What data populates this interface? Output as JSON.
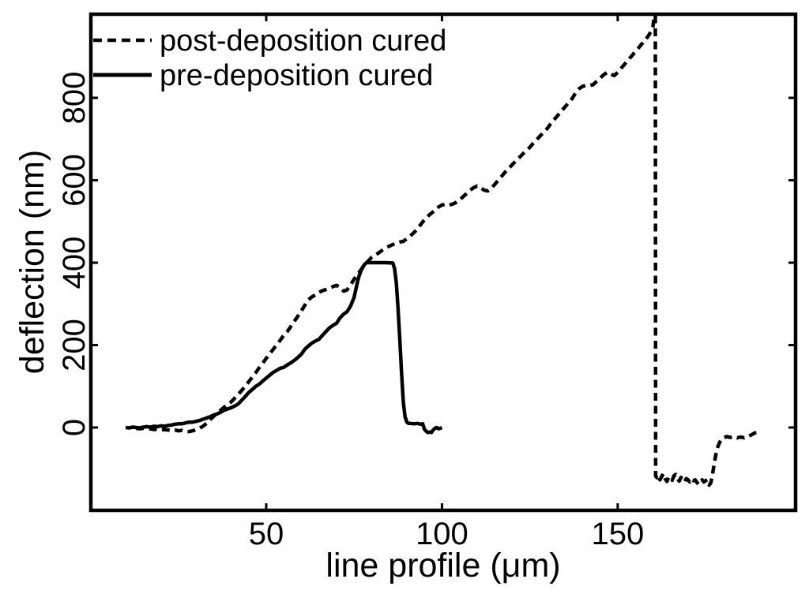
{
  "colors": {
    "background": "#ffffff",
    "foreground": "#000000"
  },
  "chart_data": {
    "type": "line",
    "title": "",
    "xlabel": "line profile (μm)",
    "ylabel": "deflection (nm)",
    "xlim": [
      0.1,
      200.6
    ],
    "ylim": [
      -201,
      1003
    ],
    "x_ticks": [
      50,
      100,
      150
    ],
    "y_ticks": [
      0,
      200,
      400,
      600,
      800
    ],
    "grid": false,
    "legend_position": "top-left",
    "series": [
      {
        "name": "post-deposition cured",
        "line_style": "dashed",
        "color": "#000000",
        "points": [
          [
            13,
            -2
          ],
          [
            14,
            -3
          ],
          [
            15,
            -2
          ],
          [
            16,
            -4
          ],
          [
            17,
            -3
          ],
          [
            18,
            -5
          ],
          [
            19,
            -4
          ],
          [
            20,
            -6
          ],
          [
            21,
            -5
          ],
          [
            22,
            -6
          ],
          [
            23,
            -7
          ],
          [
            24,
            -6
          ],
          [
            25,
            -8
          ],
          [
            26,
            -7
          ],
          [
            27,
            -9
          ],
          [
            28,
            -10
          ],
          [
            29,
            -8
          ],
          [
            30,
            -6
          ],
          [
            31,
            -2
          ],
          [
            32,
            3
          ],
          [
            33,
            10
          ],
          [
            34,
            19
          ],
          [
            35,
            27
          ],
          [
            36,
            35
          ],
          [
            37,
            42
          ],
          [
            38,
            49
          ],
          [
            39,
            56
          ],
          [
            40,
            62
          ],
          [
            41,
            71
          ],
          [
            42,
            80
          ],
          [
            43,
            90
          ],
          [
            44,
            100
          ],
          [
            45,
            111
          ],
          [
            46,
            122
          ],
          [
            47,
            133
          ],
          [
            48,
            145
          ],
          [
            49,
            156
          ],
          [
            50,
            168
          ],
          [
            51,
            179
          ],
          [
            52,
            190
          ],
          [
            53,
            201
          ],
          [
            54,
            212
          ],
          [
            55,
            224
          ],
          [
            56,
            233
          ],
          [
            57,
            245
          ],
          [
            58,
            258
          ],
          [
            59,
            270
          ],
          [
            60,
            283
          ],
          [
            61,
            297
          ],
          [
            62,
            310
          ],
          [
            63,
            317
          ],
          [
            64,
            322
          ],
          [
            65,
            328
          ],
          [
            66,
            332
          ],
          [
            67,
            335
          ],
          [
            68,
            338
          ],
          [
            69,
            342
          ],
          [
            70,
            345
          ],
          [
            71,
            341
          ],
          [
            72,
            331
          ],
          [
            73,
            334
          ],
          [
            74,
            346
          ],
          [
            75,
            360
          ],
          [
            76,
            372
          ],
          [
            77,
            383
          ],
          [
            78,
            394
          ],
          [
            79,
            404
          ],
          [
            80,
            413
          ],
          [
            81,
            418
          ],
          [
            82,
            424
          ],
          [
            83,
            430
          ],
          [
            84,
            436
          ],
          [
            85,
            440
          ],
          [
            86,
            444
          ],
          [
            87,
            447
          ],
          [
            88,
            450
          ],
          [
            89,
            452
          ],
          [
            90,
            458
          ],
          [
            91,
            465
          ],
          [
            92,
            473
          ],
          [
            93,
            482
          ],
          [
            94,
            493
          ],
          [
            95,
            504
          ],
          [
            96,
            513
          ],
          [
            97,
            520
          ],
          [
            98,
            527
          ],
          [
            99,
            535
          ],
          [
            100,
            540
          ],
          [
            101,
            542
          ],
          [
            102,
            540
          ],
          [
            103,
            542
          ],
          [
            104,
            546
          ],
          [
            105,
            552
          ],
          [
            106,
            560
          ],
          [
            107,
            568
          ],
          [
            108,
            576
          ],
          [
            109,
            582
          ],
          [
            110,
            586
          ],
          [
            111,
            582
          ],
          [
            112,
            576
          ],
          [
            113,
            574
          ],
          [
            114,
            580
          ],
          [
            115,
            590
          ],
          [
            116,
            600
          ],
          [
            117,
            610
          ],
          [
            118,
            620
          ],
          [
            119,
            629
          ],
          [
            120,
            638
          ],
          [
            121,
            647
          ],
          [
            122,
            655
          ],
          [
            123,
            664
          ],
          [
            124,
            672
          ],
          [
            125,
            680
          ],
          [
            126,
            690
          ],
          [
            127,
            699
          ],
          [
            128,
            708
          ],
          [
            129,
            717
          ],
          [
            130,
            726
          ],
          [
            131,
            738
          ],
          [
            132,
            748
          ],
          [
            133,
            758
          ],
          [
            134,
            768
          ],
          [
            135,
            778
          ],
          [
            136,
            788
          ],
          [
            137,
            798
          ],
          [
            138,
            812
          ],
          [
            139,
            822
          ],
          [
            140,
            828
          ],
          [
            141,
            830
          ],
          [
            142,
            830
          ],
          [
            143,
            832
          ],
          [
            144,
            840
          ],
          [
            145,
            848
          ],
          [
            146,
            856
          ],
          [
            147,
            862
          ],
          [
            148,
            858
          ],
          [
            149,
            854
          ],
          [
            150,
            862
          ],
          [
            151,
            872
          ],
          [
            152,
            882
          ],
          [
            153,
            892
          ],
          [
            154,
            902
          ],
          [
            155,
            912
          ],
          [
            156,
            922
          ],
          [
            157,
            932
          ],
          [
            158,
            942
          ],
          [
            159,
            954
          ],
          [
            160,
            972
          ],
          [
            160.4,
            1000
          ],
          [
            160.7,
            1000
          ],
          [
            160.8,
            -118
          ],
          [
            161.2,
            -122
          ],
          [
            161.6,
            -117
          ],
          [
            162,
            -127
          ],
          [
            162.5,
            -119
          ],
          [
            163,
            -112
          ],
          [
            163.5,
            -124
          ],
          [
            164,
            -131
          ],
          [
            164.5,
            -120
          ],
          [
            165,
            -122
          ],
          [
            165.5,
            -128
          ],
          [
            166,
            -117
          ],
          [
            166.5,
            -114
          ],
          [
            167,
            -124
          ],
          [
            167.5,
            -130
          ],
          [
            168,
            -121
          ],
          [
            168.5,
            -127
          ],
          [
            169,
            -132
          ],
          [
            169.5,
            -124
          ],
          [
            170,
            -127
          ],
          [
            170.5,
            -132
          ],
          [
            171,
            -125
          ],
          [
            171.5,
            -129
          ],
          [
            172,
            -127
          ],
          [
            172.5,
            -133
          ],
          [
            173,
            -138
          ],
          [
            173.5,
            -131
          ],
          [
            174,
            -127
          ],
          [
            174.5,
            -132
          ],
          [
            175,
            -129
          ],
          [
            175.5,
            -127
          ],
          [
            176,
            -140
          ],
          [
            176.5,
            -134
          ],
          [
            177,
            -112
          ],
          [
            177.5,
            -86
          ],
          [
            178,
            -62
          ],
          [
            178.5,
            -46
          ],
          [
            179,
            -36
          ],
          [
            179.5,
            -29
          ],
          [
            180,
            -25
          ],
          [
            181,
            -22
          ],
          [
            182,
            -24
          ],
          [
            183,
            -22
          ],
          [
            184,
            -25
          ],
          [
            185,
            -23
          ],
          [
            186,
            -25
          ],
          [
            187,
            -22
          ],
          [
            188,
            -18
          ],
          [
            189,
            -13
          ],
          [
            190,
            -12
          ]
        ]
      },
      {
        "name": "pre-deposition cured",
        "line_style": "solid",
        "color": "#000000",
        "points": [
          [
            10,
            0
          ],
          [
            11,
            -1
          ],
          [
            12,
            1
          ],
          [
            13,
            0
          ],
          [
            14,
            -1
          ],
          [
            15,
            1
          ],
          [
            16,
            2
          ],
          [
            17,
            1
          ],
          [
            18,
            3
          ],
          [
            19,
            2
          ],
          [
            20,
            4
          ],
          [
            21,
            3
          ],
          [
            22,
            5
          ],
          [
            23,
            6
          ],
          [
            24,
            8
          ],
          [
            25,
            9
          ],
          [
            26,
            9
          ],
          [
            27,
            11
          ],
          [
            28,
            13
          ],
          [
            29,
            13
          ],
          [
            30,
            15
          ],
          [
            31,
            17
          ],
          [
            32,
            20
          ],
          [
            33,
            23
          ],
          [
            34,
            26
          ],
          [
            35,
            30
          ],
          [
            36,
            33
          ],
          [
            37,
            37
          ],
          [
            38,
            42
          ],
          [
            39,
            45
          ],
          [
            40,
            48
          ],
          [
            41,
            52
          ],
          [
            42,
            57
          ],
          [
            43,
            66
          ],
          [
            44,
            75
          ],
          [
            45,
            85
          ],
          [
            46,
            92
          ],
          [
            47,
            100
          ],
          [
            48,
            105
          ],
          [
            49,
            113
          ],
          [
            50,
            120
          ],
          [
            51,
            127
          ],
          [
            52,
            134
          ],
          [
            53,
            139
          ],
          [
            54,
            144
          ],
          [
            55,
            146
          ],
          [
            56,
            152
          ],
          [
            57,
            157
          ],
          [
            58,
            163
          ],
          [
            59,
            170
          ],
          [
            60,
            178
          ],
          [
            61,
            190
          ],
          [
            62,
            198
          ],
          [
            63,
            205
          ],
          [
            64,
            210
          ],
          [
            65,
            214
          ],
          [
            66,
            224
          ],
          [
            67,
            233
          ],
          [
            68,
            242
          ],
          [
            69,
            248
          ],
          [
            70,
            253
          ],
          [
            71,
            266
          ],
          [
            72,
            275
          ],
          [
            73,
            281
          ],
          [
            74,
            295
          ],
          [
            75,
            316
          ],
          [
            76,
            355
          ],
          [
            76.5,
            370
          ],
          [
            77,
            381
          ],
          [
            77.5,
            390
          ],
          [
            78,
            396
          ],
          [
            78.5,
            400
          ],
          [
            80,
            400
          ],
          [
            82,
            400
          ],
          [
            84,
            400
          ],
          [
            86,
            399
          ],
          [
            86.5,
            386
          ],
          [
            87,
            352
          ],
          [
            87.5,
            290
          ],
          [
            88,
            212
          ],
          [
            88.5,
            132
          ],
          [
            89,
            62
          ],
          [
            89.5,
            26
          ],
          [
            90,
            13
          ],
          [
            90.5,
            10
          ],
          [
            91,
            10
          ],
          [
            92,
            9
          ],
          [
            93,
            10
          ],
          [
            94,
            8
          ],
          [
            94.5,
            9
          ],
          [
            95,
            -4
          ],
          [
            95.5,
            -9
          ],
          [
            96,
            -12
          ],
          [
            96.5,
            -11
          ],
          [
            97,
            -12
          ],
          [
            97.5,
            -6
          ],
          [
            98,
            -2
          ],
          [
            98.5,
            0
          ],
          [
            99,
            -3
          ],
          [
            99.5,
            -2
          ],
          [
            100,
            0
          ]
        ]
      }
    ]
  }
}
